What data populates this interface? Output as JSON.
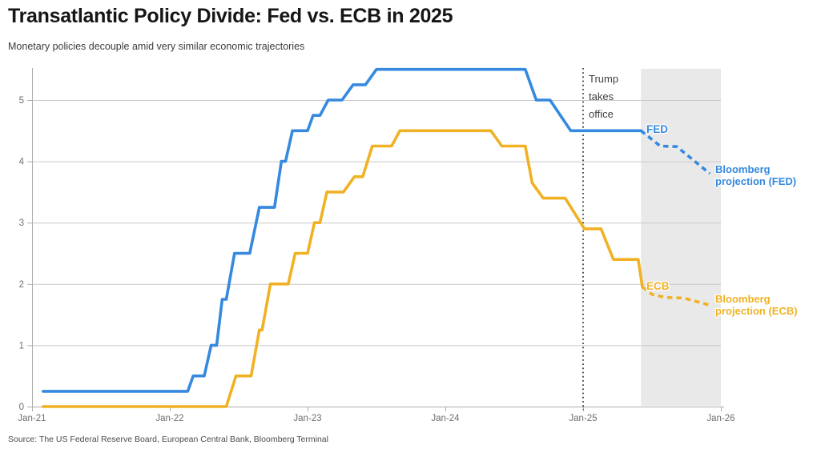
{
  "source": "Source: The US Federal Reserve Board, European Central Bank, Bloomberg Terminal",
  "colors": {
    "fed": "#3589de",
    "ecb": "#f0b224",
    "grid": "#c9c9c9",
    "axis": "#adadad",
    "band": "#e9e9e9",
    "event_line": "#3f3f3f",
    "tick_text": "#6e6e6e",
    "title_text": "#161616",
    "subtitle_text": "#3c3c3c"
  },
  "chart_data": {
    "type": "line",
    "title": "Transatlantic Policy Divide: Fed vs. ECB in 2025",
    "subtitle": "Monetary policies decouple amid very similar economic trajectories",
    "xlabel": "",
    "ylabel": "",
    "units": "percent policy rate",
    "xlim": [
      2021.0,
      2026.02
    ],
    "ylim": [
      0,
      5.5
    ],
    "grid": true,
    "x_ticks": [
      {
        "label": "Jan-21",
        "x": 2021.0
      },
      {
        "label": "Jan-22",
        "x": 2022.0
      },
      {
        "label": "Jan-23",
        "x": 2023.0
      },
      {
        "label": "Jan-24",
        "x": 2024.0
      },
      {
        "label": "Jan-25",
        "x": 2025.0
      },
      {
        "label": "Jan-26",
        "x": 2026.0
      }
    ],
    "y_ticks": [
      0,
      1,
      2,
      3,
      4,
      5
    ],
    "event_line_x": 2025.0,
    "projection_band_x": [
      2025.42,
      2026.0
    ],
    "annotations": {
      "event": "Trump takes office",
      "fed": "FED",
      "ecb": "ECB",
      "fed_projection": "Bloomberg projection (FED)",
      "ecb_projection": "Bloomberg projection (ECB)"
    },
    "series": [
      {
        "name": "FED",
        "style": "solid",
        "color": "#3589de",
        "points": [
          [
            2021.08,
            0.25
          ],
          [
            2022.13,
            0.25
          ],
          [
            2022.17,
            0.5
          ],
          [
            2022.25,
            0.5
          ],
          [
            2022.3,
            1.0
          ],
          [
            2022.34,
            1.0
          ],
          [
            2022.38,
            1.75
          ],
          [
            2022.41,
            1.75
          ],
          [
            2022.47,
            2.5
          ],
          [
            2022.58,
            2.5
          ],
          [
            2022.65,
            3.25
          ],
          [
            2022.76,
            3.25
          ],
          [
            2022.81,
            4.0
          ],
          [
            2022.84,
            4.0
          ],
          [
            2022.89,
            4.5
          ],
          [
            2023.0,
            4.5
          ],
          [
            2023.04,
            4.75
          ],
          [
            2023.09,
            4.75
          ],
          [
            2023.15,
            5.0
          ],
          [
            2023.25,
            5.0
          ],
          [
            2023.33,
            5.25
          ],
          [
            2023.42,
            5.25
          ],
          [
            2023.5,
            5.5
          ],
          [
            2024.58,
            5.5
          ],
          [
            2024.66,
            5.0
          ],
          [
            2024.76,
            5.0
          ],
          [
            2024.91,
            4.5
          ],
          [
            2025.42,
            4.5
          ]
        ]
      },
      {
        "name": "Bloomberg projection (FED)",
        "style": "dashed",
        "color": "#3589de",
        "points": [
          [
            2025.42,
            4.5
          ],
          [
            2025.56,
            4.25
          ],
          [
            2025.68,
            4.24
          ],
          [
            2025.92,
            3.8
          ]
        ]
      },
      {
        "name": "ECB",
        "style": "solid",
        "color": "#f0b224",
        "points": [
          [
            2021.08,
            0.0
          ],
          [
            2022.41,
            0.0
          ],
          [
            2022.48,
            0.5
          ],
          [
            2022.59,
            0.5
          ],
          [
            2022.65,
            1.25
          ],
          [
            2022.67,
            1.25
          ],
          [
            2022.73,
            2.0
          ],
          [
            2022.86,
            2.0
          ],
          [
            2022.91,
            2.5
          ],
          [
            2023.0,
            2.5
          ],
          [
            2023.05,
            3.0
          ],
          [
            2023.09,
            3.0
          ],
          [
            2023.14,
            3.5
          ],
          [
            2023.26,
            3.5
          ],
          [
            2023.34,
            3.75
          ],
          [
            2023.4,
            3.75
          ],
          [
            2023.47,
            4.25
          ],
          [
            2023.61,
            4.25
          ],
          [
            2023.67,
            4.5
          ],
          [
            2024.33,
            4.5
          ],
          [
            2024.41,
            4.25
          ],
          [
            2024.58,
            4.25
          ],
          [
            2024.63,
            3.65
          ],
          [
            2024.71,
            3.4
          ],
          [
            2024.87,
            3.4
          ],
          [
            2025.01,
            2.9
          ],
          [
            2025.13,
            2.9
          ],
          [
            2025.22,
            2.4
          ],
          [
            2025.4,
            2.4
          ],
          [
            2025.43,
            1.95
          ]
        ]
      },
      {
        "name": "Bloomberg projection (ECB)",
        "style": "dashed",
        "color": "#f0b224",
        "points": [
          [
            2025.43,
            1.95
          ],
          [
            2025.5,
            1.83
          ],
          [
            2025.6,
            1.78
          ],
          [
            2025.73,
            1.77
          ],
          [
            2025.91,
            1.66
          ]
        ]
      }
    ]
  }
}
